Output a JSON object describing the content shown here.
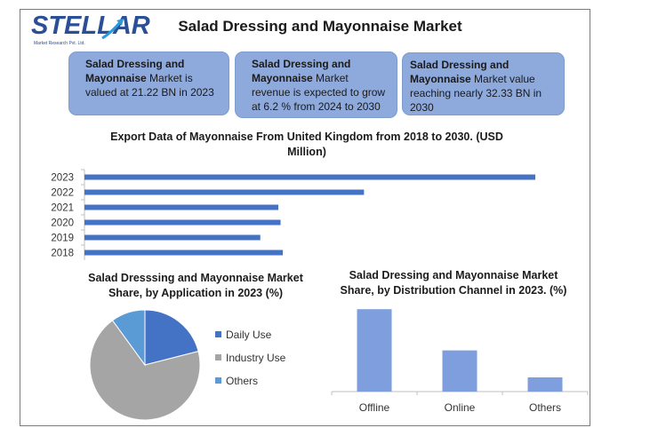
{
  "logo": {
    "word": "STELLAR",
    "subtitle": "Market Research Pvt. Ltd."
  },
  "title": "Salad Dressing and Mayonnaise Market",
  "cards": [
    {
      "bold": "Salad Dressing and Mayonnaise",
      "rest": " Market is valued at 21.22 BN in 2023"
    },
    {
      "bold": "Salad Dressing and Mayonnaise",
      "rest": " Market revenue is expected to grow at 6.2 % from 2024 to 2030"
    },
    {
      "bold": "Salad Dressing and Mayonnaise",
      "rest": " Market value reaching nearly 32.33 BN in 2030"
    }
  ],
  "chart_data": [
    {
      "type": "bar",
      "orientation": "horizontal",
      "title": "Export Data of Mayonnaise From United Kingdom from 2018 to 2030. (USD Million)",
      "categories": [
        "2023",
        "2022",
        "2021",
        "2020",
        "2019",
        "2018"
      ],
      "values": [
        100,
        62,
        43,
        43.5,
        39,
        44
      ],
      "xlim": [
        0,
        100
      ],
      "grid": false,
      "color": "#4472c4"
    },
    {
      "type": "pie",
      "title": "Salad Dresssing and Mayonnaise Market Share, by Application in 2023 (%)",
      "labels": [
        "Daily Use",
        "Industry Use",
        "Others"
      ],
      "values": [
        21,
        69,
        10
      ],
      "colors": [
        "#4472c4",
        "#a5a5a5",
        "#5b9bd5"
      ],
      "legend": "right"
    },
    {
      "type": "bar",
      "title": "Salad Dressing and Mayonnaise Market Share, by Distribution Channel in 2023. (%)",
      "categories": [
        "Offline",
        "Online",
        "Others"
      ],
      "values": [
        58,
        29,
        10
      ],
      "ylim": [
        0,
        60
      ],
      "grid": false,
      "color": "#7f9ede"
    }
  ]
}
